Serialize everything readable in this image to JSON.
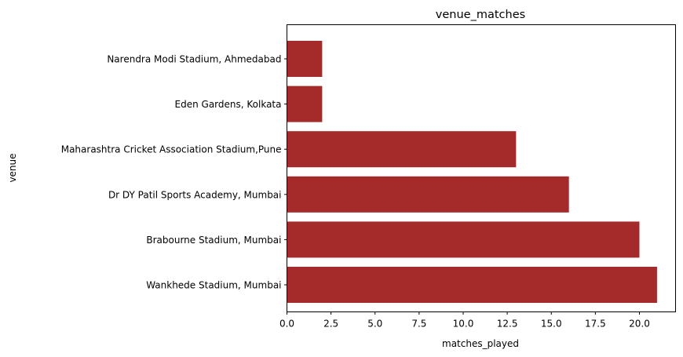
{
  "chart_data": {
    "type": "bar",
    "orientation": "horizontal",
    "title": "venue_matches",
    "xlabel": "matches_played",
    "ylabel": "venue",
    "categories": [
      "Wankhede Stadium, Mumbai",
      "Brabourne Stadium, Mumbai",
      "Dr DY Patil Sports Academy, Mumbai",
      "Maharashtra Cricket Association Stadium,Pune",
      "Eden Gardens, Kolkata",
      "Narendra Modi Stadium, Ahmedabad"
    ],
    "values": [
      21,
      20,
      16,
      13,
      2,
      2
    ],
    "xlim": [
      0,
      22.05
    ],
    "xticks": [
      "0.0",
      "2.5",
      "5.0",
      "7.5",
      "10.0",
      "12.5",
      "15.0",
      "17.5",
      "20.0"
    ],
    "bar_color": "#a52a2a",
    "grid": false
  }
}
